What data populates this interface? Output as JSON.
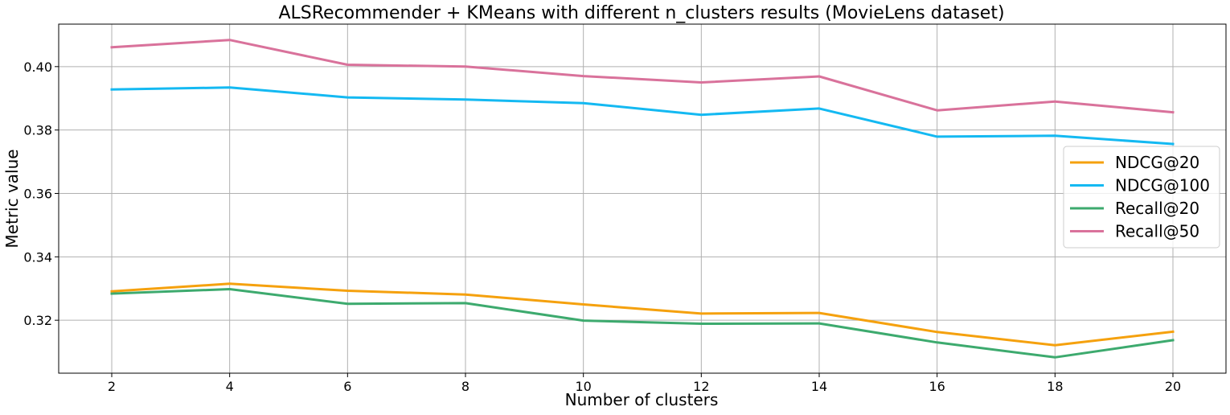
{
  "chart_data": {
    "type": "line",
    "title": "ALSRecommender + KMeans with different n_clusters results (MovieLens dataset)",
    "xlabel": "Number of clusters",
    "ylabel": "Metric value",
    "x": [
      2,
      4,
      6,
      8,
      10,
      12,
      14,
      16,
      18,
      20
    ],
    "xlim": [
      1.1,
      20.9
    ],
    "ylim": [
      0.3033,
      0.4134
    ],
    "xticks": [
      "2",
      "4",
      "6",
      "8",
      "10",
      "12",
      "14",
      "16",
      "18",
      "20"
    ],
    "yticks": [
      "0.32",
      "0.34",
      "0.36",
      "0.38",
      "0.40"
    ],
    "ytick_values": [
      0.32,
      0.34,
      0.36,
      0.38,
      0.4
    ],
    "grid": true,
    "legend_position": "right",
    "series": [
      {
        "name": "NDCG@20",
        "color": "#f5a10e",
        "values": [
          0.3291,
          0.3315,
          0.3293,
          0.3281,
          0.325,
          0.3221,
          0.3223,
          0.3163,
          0.3121,
          0.3164
        ]
      },
      {
        "name": "NDCG@100",
        "color": "#14b9f2",
        "values": [
          0.3928,
          0.3934,
          0.3903,
          0.3896,
          0.3885,
          0.3848,
          0.3868,
          0.3779,
          0.3782,
          0.3756
        ]
      },
      {
        "name": "Recall@20",
        "color": "#3daa6e",
        "values": [
          0.3284,
          0.3298,
          0.3252,
          0.3254,
          0.3199,
          0.3189,
          0.319,
          0.313,
          0.3083,
          0.3137
        ]
      },
      {
        "name": "Recall@50",
        "color": "#d9729b",
        "values": [
          0.4061,
          0.4084,
          0.4006,
          0.4,
          0.397,
          0.395,
          0.3969,
          0.3862,
          0.389,
          0.3856
        ]
      }
    ]
  }
}
